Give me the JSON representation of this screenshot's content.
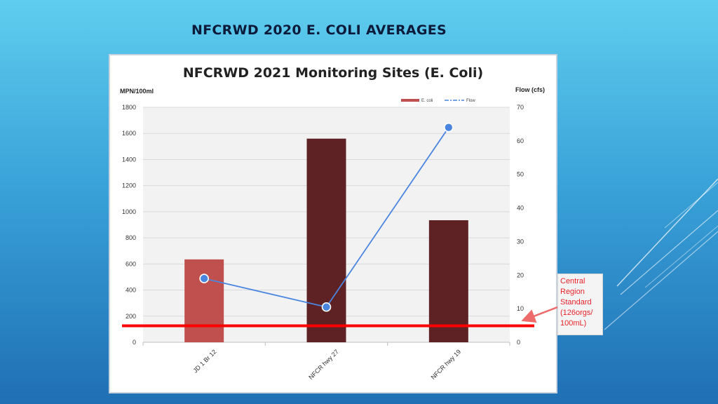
{
  "slide": {
    "title": "NFCRWD 2020 E. COLI AVERAGES"
  },
  "callout": {
    "lines": [
      "Central",
      "Region",
      "Standard",
      "(126orgs/",
      "100mL)"
    ]
  },
  "colors": {
    "ecoli_bar_first": "#c0504d",
    "ecoli_bar": "#5e2225",
    "flow_line": "#4a86e0",
    "standard_line": "#ff0000",
    "arrow": "#ee6b6b"
  },
  "chart_data": {
    "type": "bar",
    "title": "NFCRWD 2021 Monitoring Sites (E. Coli)",
    "ylabel": "MPN/100ml",
    "y2label": "Flow (cfs)",
    "categories": [
      "JD 1 Br 12",
      "NFCR hwy 27",
      "NFCR hwy 19"
    ],
    "ylim": [
      0,
      1800
    ],
    "yticks": [
      0,
      200,
      400,
      600,
      800,
      1000,
      1200,
      1400,
      1600,
      1800
    ],
    "y2lim": [
      0,
      70
    ],
    "y2ticks": [
      0,
      10,
      20,
      30,
      40,
      50,
      60,
      70
    ],
    "series": [
      {
        "name": "E. coli",
        "type": "bar",
        "axis": "left",
        "values": [
          635,
          1560,
          935
        ]
      },
      {
        "name": "Flow",
        "type": "line",
        "axis": "right",
        "values": [
          19,
          10.5,
          64
        ]
      }
    ],
    "reference_line": {
      "value": 126,
      "axis": "left"
    },
    "grid": true,
    "legend": "top-right"
  }
}
